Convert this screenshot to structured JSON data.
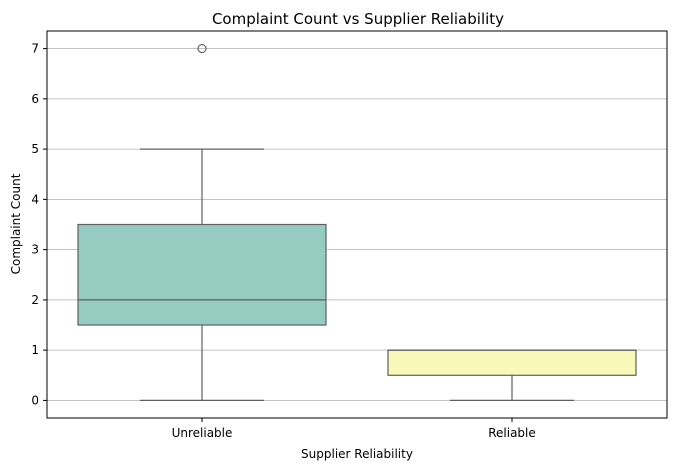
{
  "chart_data": {
    "type": "box",
    "title": "Complaint Count vs Supplier Reliability",
    "xlabel": "Supplier Reliability",
    "ylabel": "Complaint Count",
    "ylim": [
      -0.35,
      7.35
    ],
    "yticks": [
      0,
      1,
      2,
      3,
      4,
      5,
      6,
      7
    ],
    "grid": "y",
    "categories": [
      "Unreliable",
      "Reliable"
    ],
    "boxes": [
      {
        "category": "Unreliable",
        "whisker_low": 0,
        "q1": 1.5,
        "median": 2,
        "q3": 3.5,
        "whisker_high": 5,
        "outliers": [
          7
        ],
        "color": "#95cbc0"
      },
      {
        "category": "Reliable",
        "whisker_low": 0,
        "q1": 0.5,
        "median": 1,
        "q3": 1,
        "whisker_high": 1,
        "outliers": [],
        "color": "#f8f8b8"
      }
    ]
  }
}
